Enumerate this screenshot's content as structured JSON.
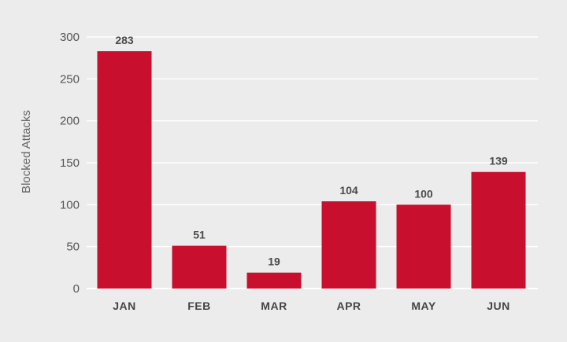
{
  "chart_data": {
    "type": "bar",
    "title": "",
    "xlabel": "",
    "ylabel": "Blocked Attacks",
    "categories": [
      "JAN",
      "FEB",
      "MAR",
      "APR",
      "MAY",
      "JUN"
    ],
    "values": [
      283,
      51,
      19,
      104,
      100,
      139
    ],
    "data_labels": [
      "283",
      "51",
      "19",
      "104",
      "100",
      "139"
    ],
    "ylim": [
      0,
      300
    ],
    "yticks": [
      0,
      50,
      100,
      150,
      200,
      250,
      300
    ],
    "ytick_labels": [
      "0",
      "50",
      "100",
      "150",
      "200",
      "250",
      "300"
    ],
    "grid": true,
    "legend": "none",
    "bar_color": "#c8102e",
    "background_color": "#ececec",
    "grid_color": "#ffffff"
  }
}
